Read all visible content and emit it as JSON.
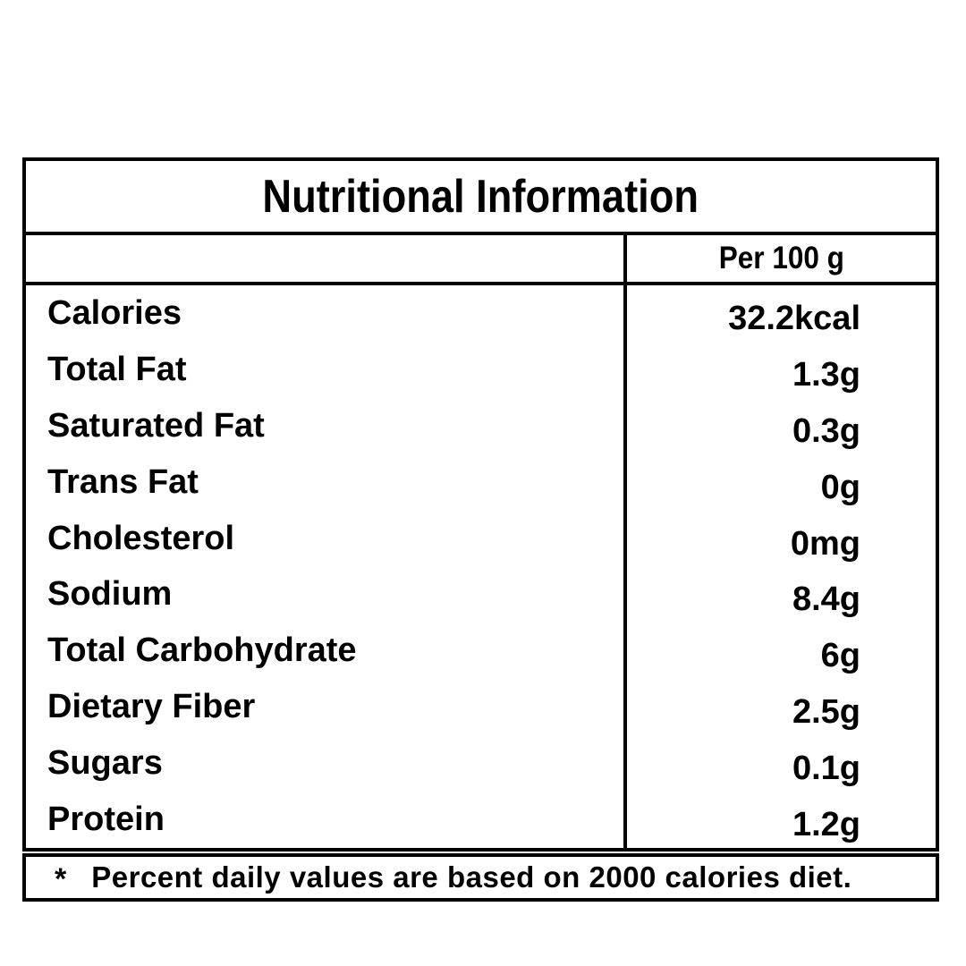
{
  "table": {
    "title": "Nutritional Information",
    "column_header": "Per 100 g",
    "rows": [
      {
        "label": "Calories",
        "value": "32.2kcal"
      },
      {
        "label": "Total Fat",
        "value": "1.3g"
      },
      {
        "label": "Saturated Fat",
        "value": "0.3g"
      },
      {
        "label": "Trans Fat",
        "value": "0g"
      },
      {
        "label": "Cholesterol",
        "value": "0mg"
      },
      {
        "label": "Sodium",
        "value": "8.4g"
      },
      {
        "label": "Total Carbohydrate",
        "value": "6g"
      },
      {
        "label": "Dietary Fiber",
        "value": "2.5g"
      },
      {
        "label": "Sugars",
        "value": "0.1g"
      },
      {
        "label": "Protein",
        "value": "1.2g"
      }
    ],
    "footnote": {
      "marker": "*",
      "text": "Percent daily values are based on 2000 calories diet."
    }
  },
  "colors": {
    "background": "#ffffff",
    "line": "#000000",
    "text": "#000000"
  }
}
